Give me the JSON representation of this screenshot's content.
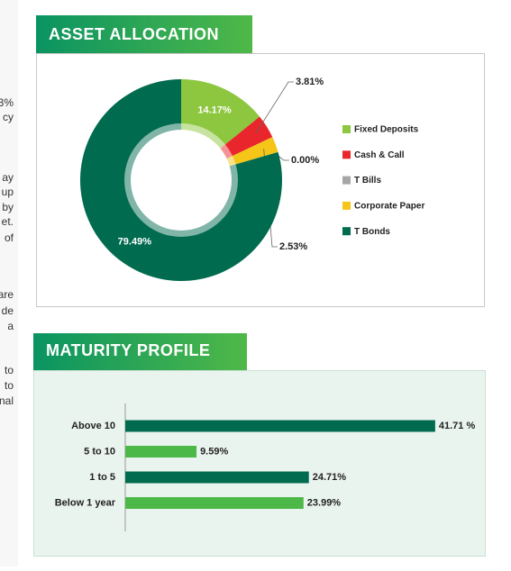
{
  "side_fragments": [
    "3%",
    "cy",
    "ay",
    "up",
    "by",
    "et.",
    "of",
    "are",
    "de",
    "a",
    "to",
    "to",
    "nal"
  ],
  "chart_data": [
    {
      "type": "donut",
      "title": "ASSET ALLOCATION",
      "series": [
        {
          "name": "Fixed Deposits",
          "color": "#8dc63f",
          "values": [
            14.17
          ],
          "value_labels": [
            "14.17%"
          ]
        },
        {
          "name": "Cash & Call",
          "color": "#e8262c",
          "values": [
            3.81
          ],
          "value_labels": [
            "3.81%"
          ]
        },
        {
          "name": "T Bills",
          "color": "#a6a6a6",
          "values": [
            0.0
          ],
          "value_labels": [
            "0.00%"
          ]
        },
        {
          "name": "Corporate Paper",
          "color": "#f5c518",
          "values": [
            2.53
          ],
          "value_labels": [
            "2.53%"
          ]
        },
        {
          "name": "T Bonds",
          "color": "#006b4f",
          "values": [
            79.49
          ],
          "value_labels": [
            "79.49%"
          ]
        }
      ]
    },
    {
      "type": "hbar",
      "title": "MATURITY PROFILE",
      "categories": [
        "Above 10",
        "5 to 10",
        "1 to 5",
        "Below 1 year"
      ],
      "values": [
        41.71,
        9.59,
        24.71,
        23.99
      ],
      "value_labels": [
        "41.71 %",
        "9.59%",
        "24.71%",
        "23.99%"
      ],
      "colors": [
        "#006b4f",
        "#4cb848",
        "#006b4f",
        "#4cb848"
      ],
      "xlim": [
        0,
        45
      ]
    }
  ]
}
